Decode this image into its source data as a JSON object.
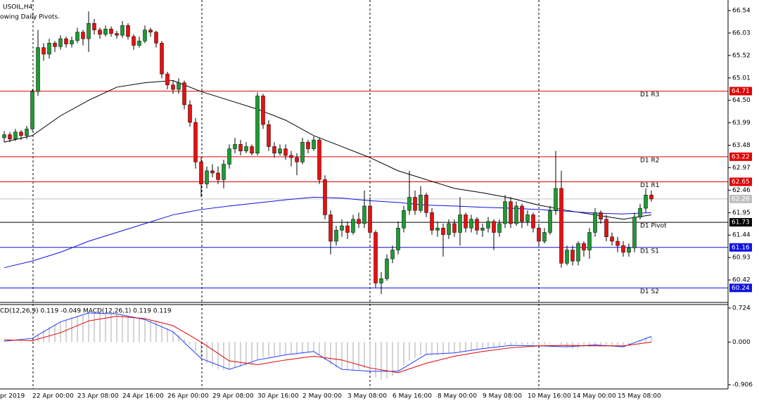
{
  "chart_data": [
    {
      "type": "candlestick",
      "title": "USOIL,H4",
      "subtitle": "owing Daily Pivots.",
      "up_color": "#1e9a32",
      "down_color": "#e81010",
      "ylim": [
        59.91,
        66.78
      ],
      "yticks": [
        66.54,
        66.03,
        65.52,
        65.01,
        {
          "value": 64.5,
          "label": "64.50"
        },
        63.99,
        63.48,
        62.97,
        62.46,
        61.95,
        61.44,
        60.93,
        60.42
      ],
      "candles": [
        [
          63.65,
          63.8,
          63.55,
          63.72
        ],
        [
          63.72,
          63.78,
          63.55,
          63.62
        ],
        [
          63.62,
          63.85,
          63.58,
          63.78
        ],
        [
          63.78,
          63.82,
          63.6,
          63.7
        ],
        [
          63.7,
          63.92,
          63.62,
          63.85
        ],
        [
          63.85,
          64.75,
          63.8,
          64.7
        ],
        [
          64.7,
          66.1,
          64.6,
          65.7
        ],
        [
          65.7,
          65.8,
          65.4,
          65.55
        ],
        [
          65.55,
          65.9,
          65.45,
          65.8
        ],
        [
          65.8,
          65.85,
          65.6,
          65.72
        ],
        [
          65.72,
          65.98,
          65.65,
          65.9
        ],
        [
          65.9,
          65.95,
          65.7,
          65.78
        ],
        [
          65.78,
          65.95,
          65.7,
          65.86
        ],
        [
          65.86,
          66.15,
          65.8,
          66.05
        ],
        [
          66.05,
          66.1,
          65.75,
          65.9
        ],
        [
          65.9,
          66.52,
          65.6,
          66.25
        ],
        [
          66.25,
          66.35,
          66.0,
          66.1
        ],
        [
          66.1,
          66.15,
          65.9,
          66.0
        ],
        [
          66.0,
          66.2,
          65.95,
          66.12
        ],
        [
          66.12,
          66.18,
          65.95,
          66.02
        ],
        [
          66.02,
          66.08,
          65.9,
          65.98
        ],
        [
          65.98,
          66.3,
          65.92,
          66.2
        ],
        [
          66.2,
          66.25,
          65.88,
          65.95
        ],
        [
          65.95,
          66.0,
          65.65,
          65.75
        ],
        [
          65.75,
          65.95,
          65.7,
          65.85
        ],
        [
          65.85,
          66.2,
          65.8,
          66.1
        ],
        [
          66.1,
          66.15,
          65.95,
          66.05
        ],
        [
          66.05,
          66.08,
          65.7,
          65.8
        ],
        [
          65.8,
          65.85,
          65.0,
          65.1
        ],
        [
          65.1,
          65.15,
          64.75,
          64.85
        ],
        [
          64.85,
          64.95,
          64.65,
          64.75
        ],
        [
          64.75,
          65.0,
          64.65,
          64.9
        ],
        [
          64.9,
          64.95,
          64.3,
          64.4
        ],
        [
          64.4,
          64.5,
          63.9,
          64.0
        ],
        [
          64.0,
          64.1,
          62.95,
          63.1
        ],
        [
          63.1,
          63.2,
          62.3,
          62.6
        ],
        [
          62.6,
          63.0,
          62.5,
          62.9
        ],
        [
          62.9,
          63.05,
          62.75,
          62.85
        ],
        [
          62.85,
          63.0,
          62.6,
          62.7
        ],
        [
          62.7,
          63.15,
          62.5,
          63.05
        ],
        [
          63.05,
          63.5,
          62.95,
          63.4
        ],
        [
          63.4,
          63.65,
          63.3,
          63.5
        ],
        [
          63.5,
          63.6,
          63.25,
          63.35
        ],
        [
          63.35,
          63.55,
          63.3,
          63.45
        ],
        [
          63.45,
          63.5,
          63.25,
          63.3
        ],
        [
          63.3,
          64.68,
          63.25,
          64.6
        ],
        [
          64.6,
          64.65,
          63.85,
          63.95
        ],
        [
          63.95,
          64.05,
          63.35,
          63.45
        ],
        [
          63.45,
          63.55,
          63.2,
          63.3
        ],
        [
          63.3,
          63.5,
          63.25,
          63.4
        ],
        [
          63.4,
          63.5,
          63.15,
          63.25
        ],
        [
          63.25,
          63.35,
          63.0,
          63.2
        ],
        [
          63.2,
          63.3,
          62.8,
          63.1
        ],
        [
          63.1,
          63.65,
          63.05,
          63.55
        ],
        [
          63.55,
          63.6,
          63.3,
          63.4
        ],
        [
          63.4,
          63.68,
          63.35,
          63.6
        ],
        [
          63.6,
          63.65,
          62.6,
          62.7
        ],
        [
          62.7,
          62.8,
          61.8,
          61.9
        ],
        [
          61.9,
          62.0,
          61.0,
          61.3
        ],
        [
          61.3,
          61.65,
          61.2,
          61.55
        ],
        [
          61.55,
          61.8,
          61.4,
          61.65
        ],
        [
          61.65,
          61.75,
          61.35,
          61.5
        ],
        [
          61.5,
          61.9,
          61.45,
          61.8
        ],
        [
          61.8,
          61.95,
          61.6,
          61.7
        ],
        [
          61.7,
          62.45,
          61.6,
          62.1
        ],
        [
          62.1,
          62.3,
          61.4,
          61.5
        ],
        [
          61.5,
          61.55,
          60.25,
          60.35
        ],
        [
          60.35,
          60.6,
          60.1,
          60.45
        ],
        [
          60.45,
          61.0,
          60.4,
          60.9
        ],
        [
          60.9,
          61.2,
          60.8,
          61.1
        ],
        [
          61.1,
          61.75,
          61.0,
          61.6
        ],
        [
          61.6,
          62.1,
          61.5,
          62.0
        ],
        [
          62.0,
          62.9,
          61.9,
          62.3
        ],
        [
          62.3,
          62.45,
          61.9,
          62.0
        ],
        [
          62.0,
          62.55,
          61.95,
          62.35
        ],
        [
          62.35,
          62.4,
          61.85,
          61.95
        ],
        [
          61.95,
          62.05,
          61.45,
          61.55
        ],
        [
          61.55,
          61.75,
          61.4,
          61.6
        ],
        [
          61.6,
          61.7,
          60.95,
          61.45
        ],
        [
          61.45,
          61.8,
          61.35,
          61.7
        ],
        [
          61.7,
          61.8,
          61.4,
          61.5
        ],
        [
          61.5,
          62.3,
          61.2,
          61.9
        ],
        [
          61.9,
          61.95,
          61.5,
          61.6
        ],
        [
          61.6,
          61.9,
          61.5,
          61.8
        ],
        [
          61.8,
          61.85,
          61.45,
          61.55
        ],
        [
          61.55,
          61.7,
          61.4,
          61.6
        ],
        [
          61.6,
          61.85,
          61.5,
          61.75
        ],
        [
          61.75,
          61.8,
          61.1,
          61.5
        ],
        [
          61.5,
          61.8,
          61.4,
          61.7
        ],
        [
          61.7,
          62.35,
          61.6,
          62.2
        ],
        [
          62.2,
          62.3,
          61.6,
          61.7
        ],
        [
          61.7,
          62.2,
          61.65,
          62.1
        ],
        [
          62.1,
          62.15,
          61.6,
          61.75
        ],
        [
          61.75,
          62.0,
          61.65,
          61.9
        ],
        [
          61.9,
          61.95,
          61.5,
          61.6
        ],
        [
          61.6,
          61.7,
          61.2,
          61.3
        ],
        [
          61.3,
          61.6,
          61.25,
          61.5
        ],
        [
          61.5,
          62.1,
          61.45,
          62.0
        ],
        [
          62.0,
          63.35,
          61.9,
          62.5
        ],
        [
          62.5,
          62.9,
          60.7,
          60.8
        ],
        [
          60.8,
          61.2,
          60.75,
          61.1
        ],
        [
          61.1,
          61.2,
          60.75,
          60.85
        ],
        [
          60.85,
          61.3,
          60.75,
          61.25
        ],
        [
          61.25,
          61.3,
          60.95,
          61.1
        ],
        [
          61.1,
          61.6,
          60.9,
          61.5
        ],
        [
          61.5,
          62.05,
          61.4,
          61.95
        ],
        [
          61.95,
          62.0,
          61.7,
          61.8
        ],
        [
          61.8,
          61.9,
          61.3,
          61.4
        ],
        [
          61.4,
          61.5,
          61.2,
          61.3
        ],
        [
          61.3,
          61.4,
          61.05,
          61.2
        ],
        [
          61.2,
          61.3,
          60.95,
          61.05
        ],
        [
          61.05,
          61.25,
          60.95,
          61.15
        ],
        [
          61.15,
          61.95,
          61.05,
          61.85
        ],
        [
          61.85,
          62.15,
          61.8,
          62.05
        ],
        [
          62.05,
          62.5,
          61.95,
          62.35
        ],
        [
          62.35,
          62.45,
          62.2,
          62.26
        ]
      ],
      "ma_x": [
        0,
        5,
        10,
        15,
        20,
        25,
        30,
        35,
        40,
        45,
        50,
        55,
        60,
        65,
        70,
        75,
        80,
        85,
        90,
        95,
        100,
        105,
        110,
        115
      ],
      "series": [
        {
          "color": "#000000",
          "values": [
            63.55,
            63.7,
            64.15,
            64.5,
            64.8,
            64.9,
            64.95,
            64.7,
            64.5,
            64.3,
            64.05,
            63.7,
            63.45,
            63.2,
            62.9,
            62.7,
            62.5,
            62.4,
            62.28,
            62.12,
            62.0,
            61.9,
            61.8,
            61.9
          ]
        },
        {
          "color": "#1010e0",
          "values": [
            60.7,
            60.85,
            61.05,
            61.3,
            61.5,
            61.7,
            61.9,
            62.02,
            62.1,
            62.17,
            62.24,
            62.3,
            62.28,
            62.22,
            62.18,
            62.12,
            62.1,
            62.07,
            62.05,
            62.02,
            61.98,
            61.94,
            61.92,
            61.95
          ]
        }
      ],
      "levels": [
        {
          "name": "D1 R3",
          "value": 64.71,
          "color": "#e00000"
        },
        {
          "name": "D1 R2",
          "value": 63.22,
          "color": "#e00000"
        },
        {
          "name": "D1 R1",
          "value": 62.65,
          "color": "#e00000"
        },
        {
          "name": "D1 Pivot",
          "value": 61.73,
          "color": "#000000"
        },
        {
          "name": "D1 S1",
          "value": 61.16,
          "color": "#1010e0"
        },
        {
          "name": "D1 S2",
          "value": 60.24,
          "color": "#1010e0"
        }
      ],
      "last_price": 62.26,
      "last_color": "#c0c0c0"
    },
    {
      "type": "macd",
      "title": "CD(12,26,9) 0.119 -0.049 MACD(12,26,1) 0.119 0.119",
      "ylim": [
        -0.996,
        0.799
      ],
      "yticks": [
        0.724,
        {
          "value": 0,
          "label": "0.000"
        },
        -0.906
      ],
      "histogram": [
        0.02,
        0.01,
        -0.01,
        -0.02,
        0.0,
        0.08,
        0.18,
        0.25,
        0.32,
        0.38,
        0.43,
        0.48,
        0.52,
        0.56,
        0.59,
        0.62,
        0.63,
        0.63,
        0.62,
        0.61,
        0.6,
        0.58,
        0.55,
        0.52,
        0.5,
        0.48,
        0.47,
        0.45,
        0.38,
        0.3,
        0.22,
        0.15,
        0.07,
        -0.05,
        -0.2,
        -0.35,
        -0.45,
        -0.52,
        -0.58,
        -0.6,
        -0.58,
        -0.55,
        -0.52,
        -0.5,
        -0.48,
        -0.38,
        -0.32,
        -0.3,
        -0.29,
        -0.28,
        -0.27,
        -0.26,
        -0.26,
        -0.24,
        -0.22,
        -0.2,
        -0.28,
        -0.38,
        -0.48,
        -0.55,
        -0.58,
        -0.6,
        -0.6,
        -0.58,
        -0.55,
        -0.62,
        -0.75,
        -0.8,
        -0.78,
        -0.72,
        -0.62,
        -0.5,
        -0.4,
        -0.34,
        -0.28,
        -0.26,
        -0.27,
        -0.28,
        -0.27,
        -0.24,
        -0.23,
        -0.2,
        -0.19,
        -0.17,
        -0.16,
        -0.14,
        -0.12,
        -0.12,
        -0.1,
        -0.06,
        -0.07,
        -0.05,
        -0.06,
        -0.05,
        -0.06,
        -0.08,
        -0.06,
        -0.03,
        0.0,
        -0.06,
        -0.1,
        -0.14,
        -0.13,
        -0.12,
        -0.1,
        -0.06,
        -0.05,
        -0.07,
        -0.08,
        -0.09,
        -0.1,
        -0.08,
        -0.02,
        0.04,
        0.1,
        0.12
      ],
      "hist_color": "#a8a8a8",
      "ma_x": [
        0,
        5,
        10,
        15,
        20,
        25,
        30,
        35,
        40,
        45,
        50,
        55,
        60,
        65,
        70,
        75,
        80,
        85,
        90,
        95,
        100,
        105,
        110,
        115
      ],
      "series": [
        {
          "color": "#1e3cff",
          "values": [
            0.02,
            0.08,
            0.43,
            0.62,
            0.6,
            0.48,
            0.22,
            -0.35,
            -0.58,
            -0.38,
            -0.27,
            -0.2,
            -0.58,
            -0.62,
            -0.62,
            -0.26,
            -0.23,
            -0.14,
            -0.07,
            -0.08,
            -0.1,
            -0.06,
            -0.1,
            0.12
          ]
        },
        {
          "color": "#e00000",
          "values": [
            0.05,
            0.03,
            0.2,
            0.45,
            0.55,
            0.5,
            0.35,
            0.0,
            -0.4,
            -0.48,
            -0.38,
            -0.3,
            -0.38,
            -0.55,
            -0.65,
            -0.45,
            -0.3,
            -0.2,
            -0.12,
            -0.08,
            -0.07,
            -0.08,
            -0.08,
            0.0
          ]
        }
      ],
      "xlabels": [
        "pr 2019",
        "22 Apr 00:00",
        "23 Apr 08:00",
        "24 Apr 16:00",
        "26 Apr 00:00",
        "29 Apr 08:00",
        "30 Apr 16:00",
        "2 May 00:00",
        "3 May 08:00",
        "6 May 16:00",
        "8 May 00:00",
        "9 May 08:00",
        "10 May 16:00",
        "14 May 00:00",
        "15 May 08:00"
      ]
    }
  ]
}
